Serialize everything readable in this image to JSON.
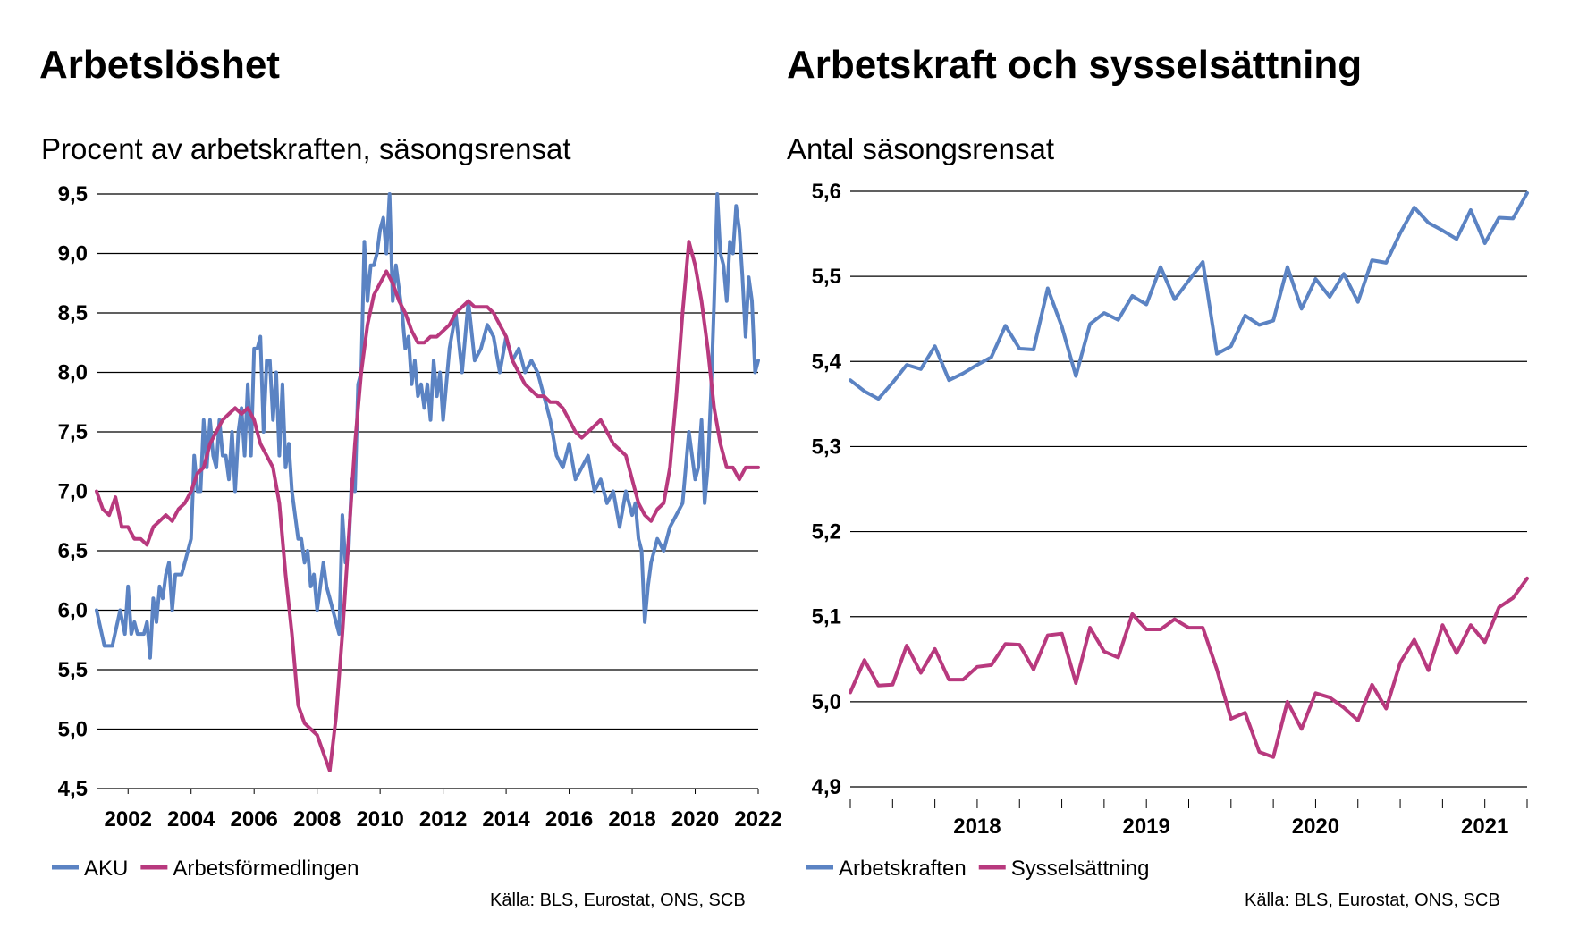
{
  "colors": {
    "blue": "#5b83c3",
    "magenta": "#b8397e",
    "grid": "#000000"
  },
  "chart_data": [
    {
      "type": "line",
      "title": "Arbetslöshet",
      "subtitle": "Procent av arbetskraften, säsongsrensat",
      "source": "Källa: BLS, Eurostat, ONS, SCB",
      "grid": true,
      "legend_placement": "bottom-left",
      "xlim": [
        2001.0,
        2022.0
      ],
      "ylim": [
        4.5,
        9.5
      ],
      "x_ticks": [
        2002,
        2004,
        2006,
        2008,
        2010,
        2012,
        2014,
        2016,
        2018,
        2020,
        2022
      ],
      "y_ticks": [
        "4,5",
        "5,0",
        "5,5",
        "6,0",
        "6,5",
        "7,0",
        "7,5",
        "8,0",
        "8,5",
        "9,0",
        "9,5"
      ],
      "series": [
        {
          "name": "AKU",
          "color": "#5b83c3",
          "x": [
            2001.0,
            2001.25,
            2001.5,
            2001.75,
            2001.9,
            2002.0,
            2002.1,
            2002.2,
            2002.3,
            2002.4,
            2002.5,
            2002.6,
            2002.7,
            2002.8,
            2002.9,
            2003.0,
            2003.1,
            2003.2,
            2003.3,
            2003.4,
            2003.5,
            2003.6,
            2003.7,
            2003.8,
            2003.9,
            2004.0,
            2004.1,
            2004.2,
            2004.3,
            2004.4,
            2004.5,
            2004.6,
            2004.7,
            2004.8,
            2004.9,
            2005.0,
            2005.1,
            2005.2,
            2005.3,
            2005.4,
            2005.5,
            2005.6,
            2005.7,
            2005.8,
            2005.9,
            2006.0,
            2006.1,
            2006.2,
            2006.3,
            2006.4,
            2006.5,
            2006.6,
            2006.7,
            2006.8,
            2006.9,
            2007.0,
            2007.1,
            2007.2,
            2007.3,
            2007.4,
            2007.5,
            2007.6,
            2007.7,
            2007.8,
            2007.9,
            2008.0,
            2008.1,
            2008.2,
            2008.3,
            2008.4,
            2008.5,
            2008.6,
            2008.7,
            2008.8,
            2008.9,
            2009.0,
            2009.1,
            2009.2,
            2009.3,
            2009.4,
            2009.5,
            2009.6,
            2009.7,
            2009.8,
            2009.9,
            2010.0,
            2010.1,
            2010.2,
            2010.3,
            2010.4,
            2010.5,
            2010.6,
            2010.7,
            2010.8,
            2010.9,
            2011.0,
            2011.1,
            2011.2,
            2011.3,
            2011.4,
            2011.5,
            2011.6,
            2011.7,
            2011.8,
            2011.9,
            2012.0,
            2012.2,
            2012.4,
            2012.6,
            2012.8,
            2013.0,
            2013.2,
            2013.4,
            2013.6,
            2013.8,
            2014.0,
            2014.2,
            2014.4,
            2014.6,
            2014.8,
            2015.0,
            2015.2,
            2015.4,
            2015.6,
            2015.8,
            2016.0,
            2016.2,
            2016.4,
            2016.6,
            2016.8,
            2017.0,
            2017.2,
            2017.4,
            2017.6,
            2017.8,
            2018.0,
            2018.1,
            2018.2,
            2018.3,
            2018.4,
            2018.5,
            2018.6,
            2018.8,
            2019.0,
            2019.2,
            2019.4,
            2019.6,
            2019.8,
            2020.0,
            2020.1,
            2020.2,
            2020.3,
            2020.4,
            2020.5,
            2020.6,
            2020.7,
            2020.8,
            2020.9,
            2021.0,
            2021.1,
            2021.2,
            2021.3,
            2021.4,
            2021.5,
            2021.6,
            2021.7,
            2021.8,
            2021.9,
            2022.0
          ],
          "y": [
            6.0,
            5.7,
            5.7,
            6.0,
            5.8,
            6.2,
            5.8,
            5.9,
            5.8,
            5.8,
            5.8,
            5.9,
            5.6,
            6.1,
            5.9,
            6.2,
            6.1,
            6.3,
            6.4,
            6.0,
            6.3,
            6.3,
            6.3,
            6.4,
            6.5,
            6.6,
            7.3,
            7.0,
            7.0,
            7.6,
            7.2,
            7.6,
            7.3,
            7.2,
            7.6,
            7.3,
            7.3,
            7.1,
            7.5,
            7.0,
            7.5,
            7.7,
            7.3,
            7.9,
            7.3,
            8.2,
            8.2,
            8.3,
            7.5,
            8.1,
            8.1,
            7.6,
            8.0,
            7.3,
            7.9,
            7.2,
            7.4,
            7.0,
            6.8,
            6.6,
            6.6,
            6.4,
            6.5,
            6.2,
            6.3,
            6.0,
            6.2,
            6.4,
            6.2,
            6.1,
            6.0,
            5.9,
            5.8,
            6.8,
            6.4,
            6.5,
            7.1,
            7.0,
            7.9,
            8.0,
            9.1,
            8.6,
            8.9,
            8.9,
            9.0,
            9.2,
            9.3,
            9.0,
            9.5,
            8.6,
            8.9,
            8.7,
            8.5,
            8.2,
            8.3,
            7.9,
            8.1,
            7.8,
            7.9,
            7.7,
            7.9,
            7.6,
            8.1,
            7.8,
            8.0,
            7.6,
            8.2,
            8.5,
            8.0,
            8.6,
            8.1,
            8.2,
            8.4,
            8.3,
            8.0,
            8.3,
            8.1,
            8.2,
            8.0,
            8.1,
            8.0,
            7.8,
            7.6,
            7.3,
            7.2,
            7.4,
            7.1,
            7.2,
            7.3,
            7.0,
            7.1,
            6.9,
            7.0,
            6.7,
            7.0,
            6.8,
            6.9,
            6.6,
            6.5,
            5.9,
            6.2,
            6.4,
            6.6,
            6.5,
            6.7,
            6.8,
            6.9,
            7.5,
            7.1,
            7.2,
            7.6,
            6.9,
            7.2,
            7.8,
            8.6,
            9.5,
            9.0,
            8.9,
            8.6,
            9.1,
            9.0,
            9.4,
            9.2,
            8.8,
            8.3,
            8.8,
            8.6,
            8.0,
            8.1
          ]
        },
        {
          "name": "Arbetsförmedlingen",
          "color": "#b8397e",
          "x": [
            2001.0,
            2001.2,
            2001.4,
            2001.6,
            2001.8,
            2002.0,
            2002.2,
            2002.4,
            2002.6,
            2002.8,
            2003.0,
            2003.2,
            2003.4,
            2003.6,
            2003.8,
            2004.0,
            2004.2,
            2004.4,
            2004.6,
            2004.8,
            2005.0,
            2005.2,
            2005.4,
            2005.6,
            2005.8,
            2006.0,
            2006.2,
            2006.4,
            2006.6,
            2006.8,
            2007.0,
            2007.2,
            2007.4,
            2007.6,
            2007.8,
            2008.0,
            2008.2,
            2008.4,
            2008.6,
            2008.8,
            2009.0,
            2009.2,
            2009.4,
            2009.6,
            2009.8,
            2010.0,
            2010.2,
            2010.4,
            2010.6,
            2010.8,
            2011.0,
            2011.2,
            2011.4,
            2011.6,
            2011.8,
            2012.0,
            2012.2,
            2012.4,
            2012.6,
            2012.8,
            2013.0,
            2013.2,
            2013.4,
            2013.6,
            2013.8,
            2014.0,
            2014.2,
            2014.4,
            2014.6,
            2014.8,
            2015.0,
            2015.2,
            2015.4,
            2015.6,
            2015.8,
            2016.0,
            2016.2,
            2016.4,
            2016.6,
            2016.8,
            2017.0,
            2017.2,
            2017.4,
            2017.6,
            2017.8,
            2018.0,
            2018.2,
            2018.4,
            2018.6,
            2018.8,
            2019.0,
            2019.2,
            2019.4,
            2019.6,
            2019.8,
            2020.0,
            2020.2,
            2020.4,
            2020.6,
            2020.8,
            2021.0,
            2021.2,
            2021.4,
            2021.6,
            2021.8,
            2022.0
          ],
          "y": [
            7.0,
            6.85,
            6.8,
            6.95,
            6.7,
            6.7,
            6.6,
            6.6,
            6.55,
            6.7,
            6.75,
            6.8,
            6.75,
            6.85,
            6.9,
            7.0,
            7.15,
            7.2,
            7.4,
            7.5,
            7.6,
            7.65,
            7.7,
            7.65,
            7.7,
            7.6,
            7.4,
            7.3,
            7.2,
            6.9,
            6.3,
            5.8,
            5.2,
            5.05,
            5.0,
            4.95,
            4.8,
            4.65,
            5.1,
            5.8,
            6.6,
            7.4,
            8.0,
            8.4,
            8.65,
            8.75,
            8.85,
            8.75,
            8.6,
            8.5,
            8.35,
            8.25,
            8.25,
            8.3,
            8.3,
            8.35,
            8.4,
            8.5,
            8.55,
            8.6,
            8.55,
            8.55,
            8.55,
            8.5,
            8.4,
            8.3,
            8.1,
            8.0,
            7.9,
            7.85,
            7.8,
            7.8,
            7.75,
            7.75,
            7.7,
            7.6,
            7.5,
            7.45,
            7.5,
            7.55,
            7.6,
            7.5,
            7.4,
            7.35,
            7.3,
            7.1,
            6.9,
            6.8,
            6.75,
            6.85,
            6.9,
            7.2,
            7.8,
            8.5,
            9.1,
            8.9,
            8.6,
            8.2,
            7.7,
            7.4,
            7.2,
            7.2,
            7.1,
            7.2,
            7.2,
            7.2
          ]
        }
      ]
    },
    {
      "type": "line",
      "title": "Arbetskraft och sysselsättning",
      "subtitle": "Antal säsongsrensat",
      "source": "Källa: BLS, Eurostat, ONS, SCB",
      "grid": true,
      "legend_placement": "bottom-left",
      "xlim": [
        0,
        48
      ],
      "ylim": [
        4.9,
        5.6
      ],
      "x_ticks": [
        "2018",
        "2019",
        "2020",
        "2021"
      ],
      "y_ticks": [
        "4,9",
        "5,0",
        "5,1",
        "5,2",
        "5,3",
        "5,4",
        "5,5",
        "5,6"
      ],
      "series": [
        {
          "name": "Arbetskraften",
          "color": "#5b83c3",
          "y": [
            5.378,
            5.365,
            5.356,
            5.375,
            5.396,
            5.391,
            5.418,
            5.378,
            5.386,
            5.396,
            5.405,
            5.442,
            5.415,
            5.414,
            5.486,
            5.441,
            5.383,
            5.444,
            5.457,
            5.449,
            5.477,
            5.467,
            5.511,
            5.473,
            5.495,
            5.517,
            5.409,
            5.418,
            5.454,
            5.443,
            5.448,
            5.511,
            5.462,
            5.497,
            5.476,
            5.503,
            5.47,
            5.519,
            5.516,
            5.551,
            5.581,
            5.563,
            5.554,
            5.544,
            5.578,
            5.539,
            5.569,
            5.568,
            5.598
          ]
        },
        {
          "name": "Sysselsättning",
          "color": "#b8397e",
          "y": [
            5.011,
            5.049,
            5.019,
            5.02,
            5.066,
            5.034,
            5.062,
            5.026,
            5.026,
            5.041,
            5.043,
            5.068,
            5.067,
            5.038,
            5.078,
            5.08,
            5.022,
            5.087,
            5.059,
            5.052,
            5.103,
            5.085,
            5.085,
            5.097,
            5.087,
            5.087,
            5.038,
            4.98,
            4.987,
            4.941,
            4.935,
            5.0,
            4.968,
            5.01,
            5.005,
            4.993,
            4.978,
            5.02,
            4.992,
            5.046,
            5.073,
            5.037,
            5.09,
            5.057,
            5.09,
            5.07,
            5.111,
            5.122,
            5.145
          ]
        }
      ]
    }
  ]
}
